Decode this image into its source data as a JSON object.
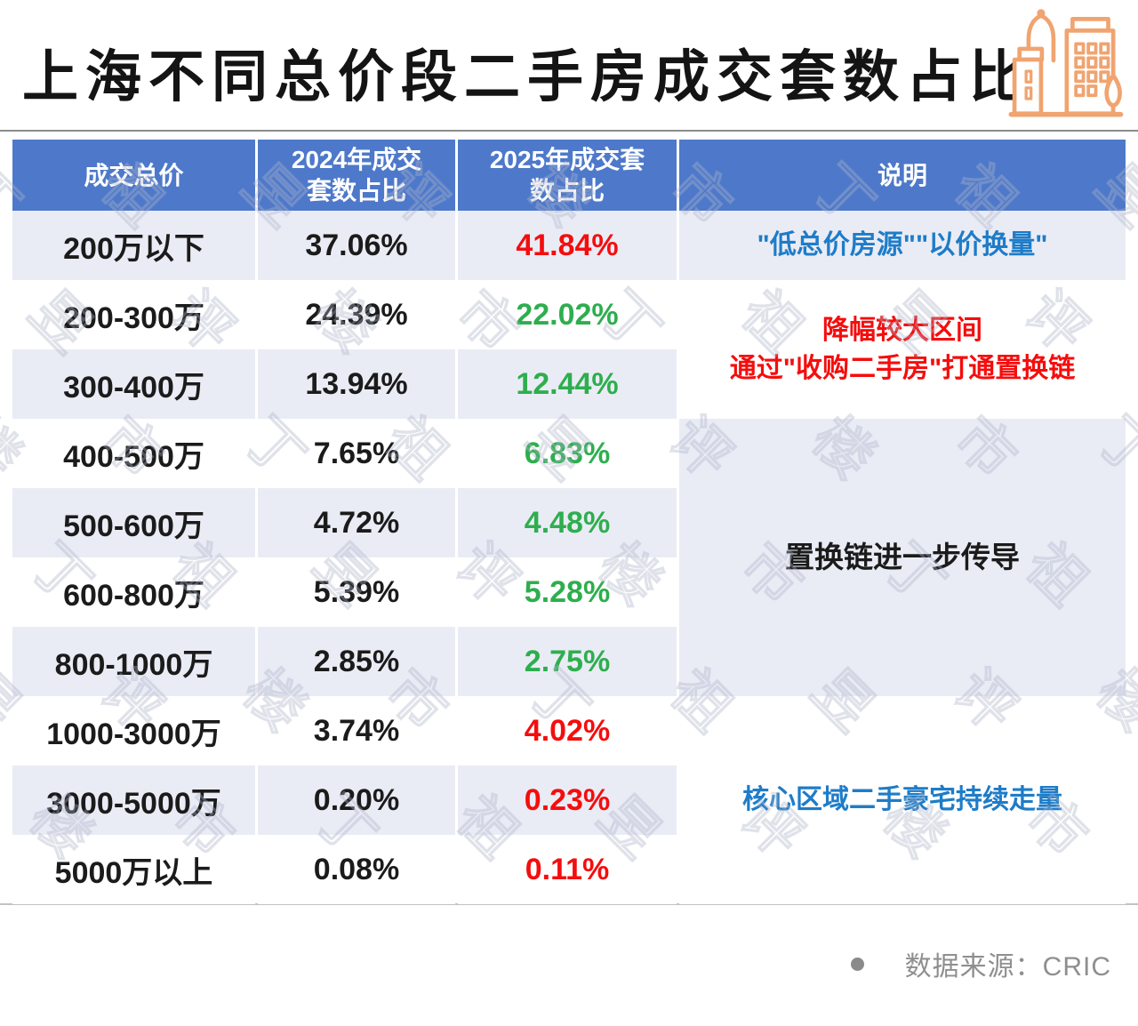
{
  "title": "上海不同总价段二手房成交套数占比",
  "icon": {
    "name": "city-buildings",
    "color": "#F0A470"
  },
  "table": {
    "headers": {
      "price": "成交总价",
      "share2024": "2024年成交套数占比",
      "share2025": "2025年成交套数占比",
      "note": "说明"
    },
    "rows": [
      {
        "range": "200万以下",
        "y2024": "37.06%",
        "y2025": "41.84%",
        "y2025_color": "#F50D0D"
      },
      {
        "range": "200-300万",
        "y2024": "24.39%",
        "y2025": "22.02%",
        "y2025_color": "#2EAE4E"
      },
      {
        "range": "300-400万",
        "y2024": "13.94%",
        "y2025": "12.44%",
        "y2025_color": "#2EAE4E"
      },
      {
        "range": "400-500万",
        "y2024": "7.65%",
        "y2025": "6.83%",
        "y2025_color": "#2EAE4E"
      },
      {
        "range": "500-600万",
        "y2024": "4.72%",
        "y2025": "4.48%",
        "y2025_color": "#2EAE4E"
      },
      {
        "range": "600-800万",
        "y2024": "5.39%",
        "y2025": "5.28%",
        "y2025_color": "#2EAE4E"
      },
      {
        "range": "800-1000万",
        "y2024": "2.85%",
        "y2025": "2.75%",
        "y2025_color": "#2EAE4E"
      },
      {
        "range": "1000-3000万",
        "y2024": "3.74%",
        "y2025": "4.02%",
        "y2025_color": "#F50D0D"
      },
      {
        "range": "3000-5000万",
        "y2024": "0.20%",
        "y2025": "0.23%",
        "y2025_color": "#F50D0D"
      },
      {
        "range": "5000万以上",
        "y2024": "0.08%",
        "y2025": "0.11%",
        "y2025_color": "#F50D0D"
      }
    ],
    "notes": {
      "row1": {
        "text": "\"低总价房源\"\"以价换量\"",
        "color": "#1E7CC8"
      },
      "rows2to3": {
        "line1": "降幅较大区间",
        "line2": "通过\"收购二手房\"打通置换链",
        "color": "#F50D0D"
      },
      "rows4to7": {
        "text": "置换链进一步传导",
        "color": "#1B1B1B"
      },
      "rows8to10": {
        "text": "核心区域二手豪宅持续走量",
        "color": "#1E7CC8"
      }
    }
  },
  "footer": {
    "source": "数据来源：CRIC"
  },
  "watermark": {
    "text": "丁祖昱评楼市"
  },
  "colors": {
    "header_bg": "#4E79CA",
    "header_text": "#FFFFFF",
    "row_alt_bg": "#EAECF5",
    "red": "#F50D0D",
    "green": "#2EAE4E",
    "note_blue": "#1E7CC8",
    "divider_top": "#8C8C8C",
    "divider_bottom": "#C2C2C2",
    "footer_text": "#8F8F8F",
    "icon_orange": "#F0A470"
  },
  "chart_data": {
    "type": "table",
    "title": "上海不同总价段二手房成交套数占比",
    "categories": [
      "200万以下",
      "200-300万",
      "300-400万",
      "400-500万",
      "500-600万",
      "600-800万",
      "800-1000万",
      "1000-3000万",
      "3000-5000万",
      "5000万以上"
    ],
    "series": [
      {
        "name": "2024年成交套数占比",
        "values": [
          37.06,
          24.39,
          13.94,
          7.65,
          4.72,
          5.39,
          2.85,
          3.74,
          0.2,
          0.08
        ]
      },
      {
        "name": "2025年成交套数占比",
        "values": [
          41.84,
          22.02,
          12.44,
          6.83,
          4.48,
          5.28,
          2.75,
          4.02,
          0.23,
          0.11
        ]
      }
    ],
    "unit": "%",
    "annotations": [
      {
        "rows": "200万以下",
        "text": "\"低总价房源\"\"以价换量\""
      },
      {
        "rows": "200-400万",
        "text": "降幅较大区间 通过\"收购二手房\"打通置换链"
      },
      {
        "rows": "400-1000万",
        "text": "置换链进一步传导"
      },
      {
        "rows": "1000万以上",
        "text": "核心区域二手豪宅持续走量"
      }
    ],
    "source": "CRIC"
  }
}
